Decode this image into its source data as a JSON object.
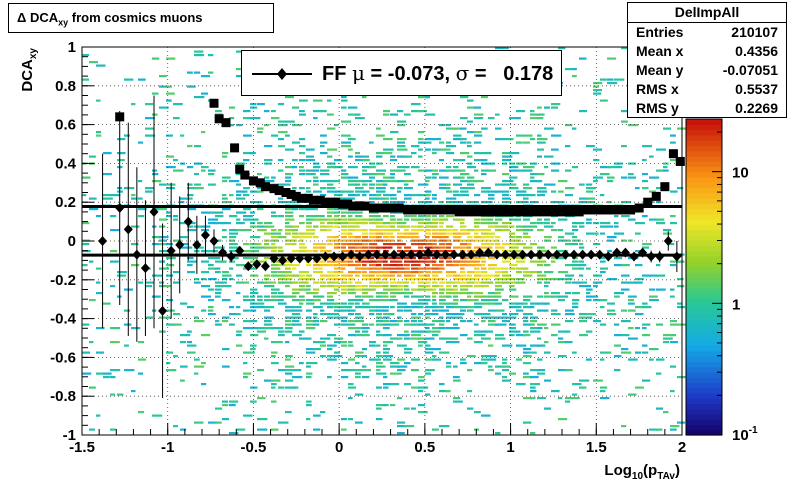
{
  "chart_data": {
    "type": "heatmap",
    "title": {
      "main": "Δ DCA",
      "sub": "xy",
      "rest": "from cosmics muons"
    },
    "x_axis": {
      "label_main": "Log",
      "label_sub": "10",
      "label_mid": "(p",
      "label_sub2": "TAv",
      "label_end": ")",
      "range": [
        -1.5,
        2
      ],
      "ticks": [
        "-1.5",
        "-1",
        "-0.5",
        "0",
        "0.5",
        "1",
        "1.5",
        "2"
      ],
      "tick_values": [
        -1.5,
        -1,
        -0.5,
        0,
        0.5,
        1,
        1.5,
        2
      ]
    },
    "y_axis": {
      "label_main": "DCA",
      "label_sub": "xy",
      "range": [
        -1,
        1
      ],
      "ticks": [
        "-1",
        "-0.8",
        "-0.6",
        "-0.4",
        "-0.2",
        "0",
        "0.2",
        "0.4",
        "0.6",
        "0.8",
        "1"
      ],
      "tick_values": [
        -1,
        -0.8,
        -0.6,
        -0.4,
        -0.2,
        0,
        0.2,
        0.4,
        0.6,
        0.8,
        1
      ]
    },
    "z_axis": {
      "scale": "log",
      "labels": [
        "10",
        "1",
        "10"
      ],
      "label_sup": "-1"
    },
    "grid": true,
    "stats": {
      "name": "DelImpAll",
      "rows": [
        {
          "label": "Entries",
          "value": "210107"
        },
        {
          "label": "Mean x",
          "value": "0.4356"
        },
        {
          "label": "Mean y",
          "value": "-0.07051"
        },
        {
          "label": "RMS x",
          "value": "0.5537"
        },
        {
          "label": "RMS y",
          "value": "0.2269"
        }
      ]
    },
    "legend": {
      "text_prefix": "FF ",
      "mu_symbol": "μ",
      "text_mid": " = -0.073, ",
      "sigma_symbol": "σ",
      "text_end": " =   0.178",
      "marker": "filled-diamond"
    },
    "fit_lines": {
      "mean": -0.073,
      "sigma": 0.178
    },
    "mean_series": {
      "x": [
        -1.38,
        -1.28,
        -1.23,
        -1.18,
        -1.13,
        -1.08,
        -1.03,
        -0.98,
        -0.93,
        -0.88,
        -0.83,
        -0.78,
        -0.73,
        -0.68,
        -0.63,
        -0.58,
        -0.53,
        -0.48,
        -0.43,
        -0.38,
        -0.33,
        -0.28,
        -0.23,
        -0.18,
        -0.13,
        -0.08,
        -0.03,
        0.02,
        0.07,
        0.12,
        0.17,
        0.22,
        0.27,
        0.32,
        0.37,
        0.42,
        0.47,
        0.52,
        0.57,
        0.62,
        0.67,
        0.72,
        0.77,
        0.82,
        0.87,
        0.92,
        0.97,
        1.02,
        1.07,
        1.12,
        1.17,
        1.22,
        1.27,
        1.32,
        1.37,
        1.42,
        1.47,
        1.52,
        1.57,
        1.62,
        1.67,
        1.72,
        1.77,
        1.82,
        1.87,
        1.92,
        1.97
      ],
      "y": [
        0.0,
        0.17,
        0.06,
        -0.07,
        -0.14,
        0.15,
        -0.36,
        -0.05,
        -0.02,
        0.1,
        -0.02,
        0.03,
        0.0,
        -0.06,
        -0.08,
        -0.05,
        -0.13,
        -0.12,
        -0.13,
        -0.09,
        -0.1,
        -0.09,
        -0.09,
        -0.09,
        -0.09,
        -0.08,
        -0.08,
        -0.08,
        -0.07,
        -0.08,
        -0.07,
        -0.07,
        -0.07,
        -0.07,
        -0.07,
        -0.07,
        -0.07,
        -0.06,
        -0.07,
        -0.07,
        -0.07,
        -0.07,
        -0.07,
        -0.06,
        -0.06,
        -0.07,
        -0.07,
        -0.07,
        -0.07,
        -0.07,
        -0.07,
        -0.07,
        -0.07,
        -0.07,
        -0.07,
        -0.07,
        -0.07,
        -0.07,
        -0.08,
        -0.06,
        -0.06,
        -0.08,
        -0.06,
        -0.08,
        -0.08,
        0.0,
        -0.08
      ],
      "err": [
        0.45,
        0.5,
        0.55,
        0.45,
        0.35,
        0.6,
        0.45,
        0.35,
        0.25,
        0.2,
        0.15,
        0.1,
        0.06,
        0.04,
        0.03,
        0.02,
        0.02,
        0.015,
        0.015,
        0.01,
        0.01,
        0.01,
        0.01,
        0.01,
        0.01,
        0.01,
        0.01,
        0.01,
        0.01,
        0.01,
        0.01,
        0.01,
        0.01,
        0.01,
        0.01,
        0.01,
        0.01,
        0.01,
        0.01,
        0.01,
        0.01,
        0.01,
        0.01,
        0.01,
        0.01,
        0.01,
        0.01,
        0.01,
        0.01,
        0.01,
        0.01,
        0.01,
        0.01,
        0.01,
        0.01,
        0.01,
        0.01,
        0.01,
        0.01,
        0.01,
        0.02,
        0.02,
        0.02,
        0.03,
        0.03,
        0.05,
        0.08
      ]
    },
    "rms_series": {
      "x": [
        -1.28,
        -0.73,
        -0.7,
        -0.66,
        -0.61,
        -0.58,
        -0.55,
        -0.5,
        -0.46,
        -0.43,
        -0.38,
        -0.35,
        -0.31,
        -0.28,
        -0.25,
        -0.22,
        -0.18,
        -0.15,
        -0.11,
        -0.08,
        -0.05,
        -0.02,
        0.02,
        0.05,
        0.08,
        0.12,
        0.15,
        0.2,
        0.25,
        0.3,
        0.35,
        0.4,
        0.45,
        0.5,
        0.55,
        0.6,
        0.65,
        0.7,
        0.75,
        0.8,
        0.85,
        0.9,
        0.95,
        1.0,
        1.05,
        1.1,
        1.15,
        1.2,
        1.25,
        1.3,
        1.35,
        1.4,
        1.45,
        1.5,
        1.55,
        1.6,
        1.65,
        1.7,
        1.75,
        1.8,
        1.85,
        1.9,
        1.95,
        1.99
      ],
      "y": [
        0.64,
        0.71,
        0.63,
        0.61,
        0.48,
        0.37,
        0.34,
        0.31,
        0.3,
        0.28,
        0.27,
        0.26,
        0.25,
        0.24,
        0.23,
        0.22,
        0.22,
        0.21,
        0.21,
        0.2,
        0.2,
        0.2,
        0.19,
        0.19,
        0.18,
        0.18,
        0.18,
        0.17,
        0.17,
        0.17,
        0.17,
        0.16,
        0.16,
        0.16,
        0.16,
        0.16,
        0.16,
        0.15,
        0.15,
        0.15,
        0.15,
        0.15,
        0.15,
        0.15,
        0.15,
        0.15,
        0.15,
        0.15,
        0.15,
        0.15,
        0.15,
        0.15,
        0.16,
        0.16,
        0.16,
        0.16,
        0.16,
        0.16,
        0.17,
        0.2,
        0.23,
        0.28,
        0.45,
        0.41
      ]
    }
  }
}
